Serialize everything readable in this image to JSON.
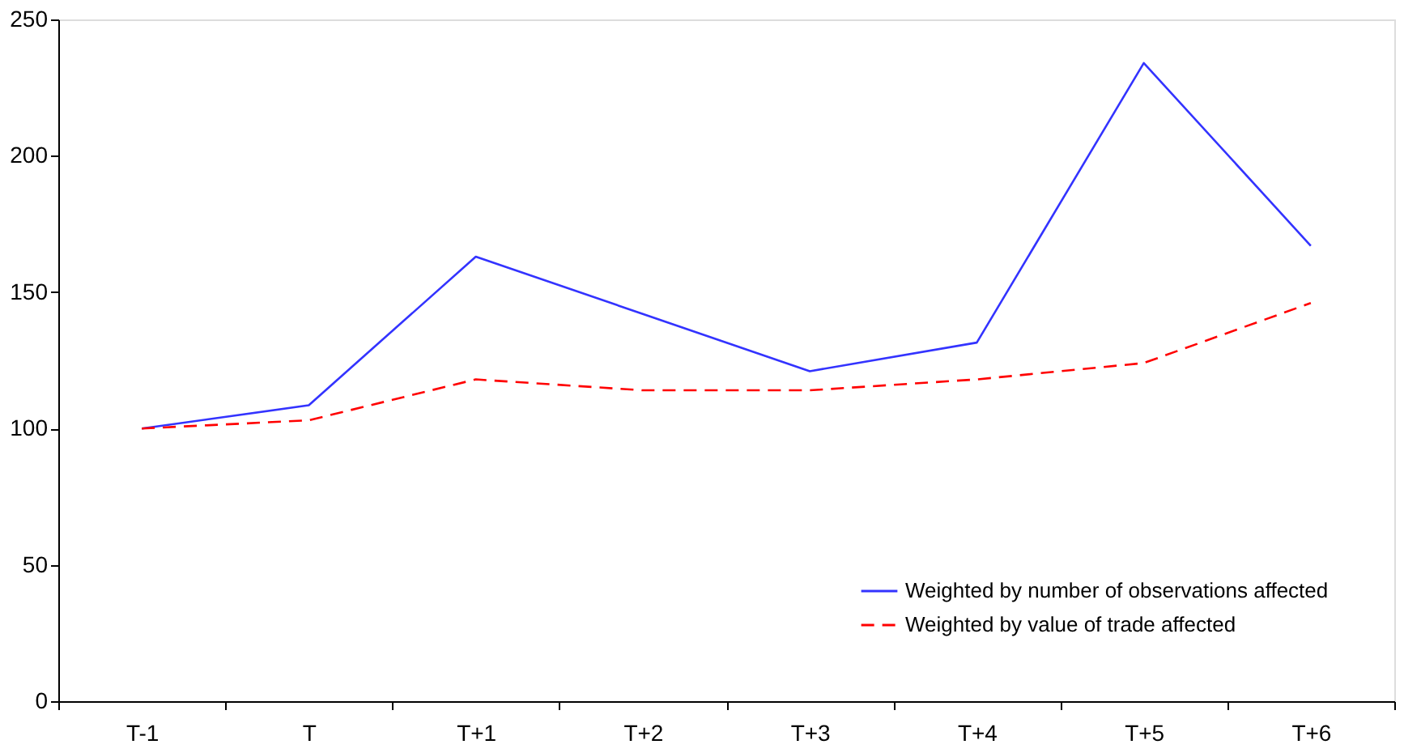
{
  "chart_data": {
    "type": "line",
    "categories": [
      "T-1",
      "T",
      "T+1",
      "T+2",
      "T+3",
      "T+4",
      "T+5",
      "T+6"
    ],
    "series": [
      {
        "name": "Weighted by number of observations affected",
        "color": "#3333ff",
        "line_style": "solid",
        "values": [
          100,
          108.5,
          163,
          142,
          121,
          131.5,
          234,
          167
        ]
      },
      {
        "name": "Weighted by value of trade affected",
        "color": "#ff0000",
        "line_style": "dashed",
        "values": [
          100,
          103,
          118,
          114,
          114,
          118,
          124,
          146
        ]
      }
    ],
    "ylim": [
      0,
      250
    ],
    "yticks": [
      0,
      50,
      100,
      150,
      200,
      250
    ],
    "grid": false,
    "legend": "bottom right",
    "marker": "none"
  }
}
